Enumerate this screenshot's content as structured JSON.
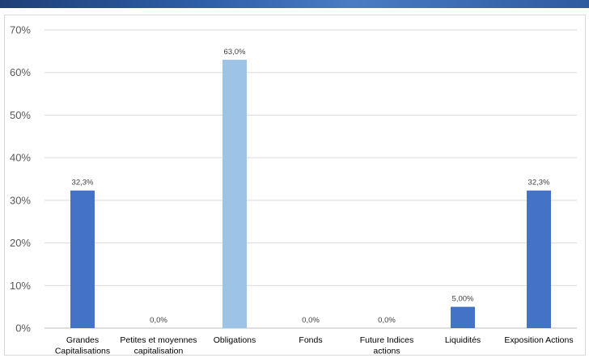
{
  "colors": {
    "bar_primary": "#4472c4",
    "bar_highlight": "#9dc3e6",
    "gridline": "#d9d9d9",
    "axis": "#bfbfbf"
  },
  "chart_data": {
    "type": "bar",
    "categories": [
      [
        "Grandes",
        "Capitalisations"
      ],
      [
        "Petites et moyennes",
        "capitalisation"
      ],
      [
        "Obligations"
      ],
      [
        "Fonds"
      ],
      [
        "Future Indices",
        "actions"
      ],
      [
        "Liquidités"
      ],
      [
        "Exposition Actions"
      ]
    ],
    "values": [
      32.3,
      0.0,
      63.0,
      0.0,
      0.0,
      5.0,
      32.3
    ],
    "data_labels": [
      "32,3%",
      "0,0%",
      "63,0%",
      "0,0%",
      "0,0%",
      "5,00%",
      "32,3%"
    ],
    "highlight_index": [
      2
    ],
    "ylim": [
      0,
      70
    ],
    "y_ticks": [
      0,
      10,
      20,
      30,
      40,
      50,
      60,
      70
    ],
    "y_tick_labels": [
      "0%",
      "10%",
      "20%",
      "30%",
      "40%",
      "50%",
      "60%",
      "70%"
    ],
    "grid": true,
    "legend": "none"
  }
}
